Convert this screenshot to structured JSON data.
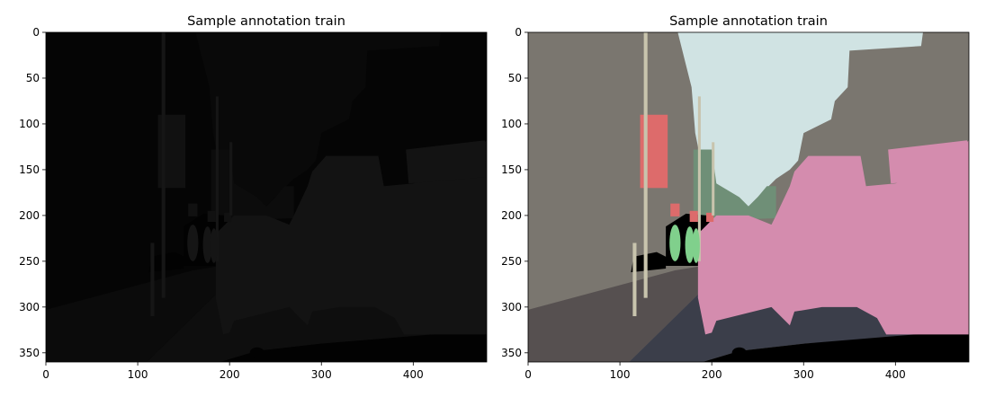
{
  "chart_data": [
    {
      "type": "heatmap",
      "title": "Sample annotation train",
      "variant": "raw-label-image",
      "xlim": [
        0,
        480
      ],
      "ylim": [
        360,
        0
      ],
      "xticks": [
        0,
        100,
        200,
        300,
        400
      ],
      "yticks": [
        0,
        50,
        100,
        150,
        200,
        250,
        300,
        350
      ],
      "image_width": 480,
      "image_height": 360,
      "colors": {
        "background": "#050505",
        "road": "#0e0e0e",
        "building": "#0c0c0c",
        "sky": "#090909",
        "sidewalk": "#0b0b0b",
        "car": "#131313",
        "pole": "#161616",
        "sign": "#111111",
        "pedestrian": "#151515",
        "void": "#020202"
      }
    },
    {
      "type": "heatmap",
      "title": "Sample annotation train",
      "variant": "colorized-segmentation",
      "xlim": [
        0,
        480
      ],
      "ylim": [
        360,
        0
      ],
      "xticks": [
        0,
        100,
        200,
        300,
        400
      ],
      "yticks": [
        0,
        50,
        100,
        150,
        200,
        250,
        300,
        350
      ],
      "image_width": 480,
      "image_height": 360,
      "colors": {
        "building": "#7a766f",
        "sky": "#d0e3e3",
        "road": "#3b3e4a",
        "sidewalk": "#565050",
        "car": "#d48cae",
        "tree": "#6f8f77",
        "pole": "#c8c4ad",
        "sign": "#dd6b6b",
        "pedestrian": "#80d08c",
        "void": "#000000"
      }
    }
  ]
}
